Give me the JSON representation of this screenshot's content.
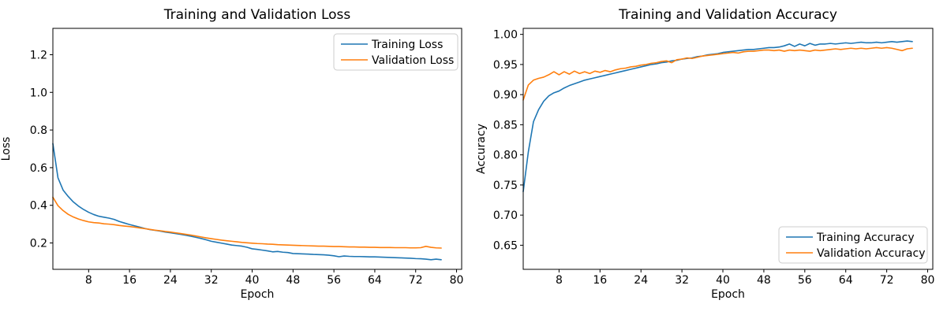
{
  "figure": {
    "background": "#ffffff"
  },
  "chart_data": [
    {
      "type": "line",
      "title": "Training and Validation Loss",
      "xlabel": "Epoch",
      "ylabel": "Loss",
      "xlim": [
        1,
        81
      ],
      "ylim": [
        0.06,
        1.34
      ],
      "grid": false,
      "legend_loc": "upper right",
      "x_ticks": [
        8,
        16,
        24,
        32,
        40,
        48,
        56,
        64,
        72,
        80
      ],
      "y_ticks": [
        0.2,
        0.4,
        0.6,
        0.8,
        1.0,
        1.2
      ],
      "y_tick_labels": [
        "0.2",
        "0.4",
        "0.6",
        "0.8",
        "1.0",
        "1.2"
      ],
      "x_start": 1,
      "series": [
        {
          "name": "Training Loss",
          "color": "#1f77b4",
          "values": [
            0.728,
            0.546,
            0.481,
            0.447,
            0.418,
            0.396,
            0.378,
            0.363,
            0.351,
            0.342,
            0.337,
            0.332,
            0.325,
            0.314,
            0.306,
            0.298,
            0.291,
            0.284,
            0.277,
            0.271,
            0.267,
            0.263,
            0.258,
            0.254,
            0.25,
            0.246,
            0.241,
            0.236,
            0.23,
            0.224,
            0.217,
            0.209,
            0.204,
            0.199,
            0.194,
            0.189,
            0.186,
            0.183,
            0.177,
            0.169,
            0.166,
            0.162,
            0.158,
            0.153,
            0.155,
            0.151,
            0.149,
            0.144,
            0.143,
            0.142,
            0.141,
            0.139,
            0.138,
            0.137,
            0.135,
            0.132,
            0.127,
            0.131,
            0.129,
            0.128,
            0.128,
            0.127,
            0.126,
            0.126,
            0.125,
            0.124,
            0.123,
            0.122,
            0.121,
            0.12,
            0.119,
            0.117,
            0.116,
            0.114,
            0.111,
            0.114,
            0.111
          ]
        },
        {
          "name": "Validation Loss",
          "color": "#ff7f0e",
          "values": [
            0.443,
            0.398,
            0.372,
            0.352,
            0.338,
            0.327,
            0.319,
            0.312,
            0.308,
            0.306,
            0.302,
            0.3,
            0.297,
            0.293,
            0.29,
            0.287,
            0.284,
            0.28,
            0.276,
            0.272,
            0.268,
            0.265,
            0.261,
            0.258,
            0.254,
            0.25,
            0.246,
            0.242,
            0.237,
            0.232,
            0.227,
            0.223,
            0.219,
            0.215,
            0.212,
            0.209,
            0.206,
            0.203,
            0.201,
            0.199,
            0.197,
            0.196,
            0.194,
            0.193,
            0.191,
            0.19,
            0.189,
            0.188,
            0.187,
            0.186,
            0.185,
            0.184,
            0.183,
            0.183,
            0.182,
            0.181,
            0.181,
            0.18,
            0.179,
            0.179,
            0.178,
            0.178,
            0.177,
            0.177,
            0.176,
            0.176,
            0.176,
            0.175,
            0.175,
            0.175,
            0.174,
            0.174,
            0.175,
            0.182,
            0.177,
            0.174,
            0.173
          ]
        }
      ]
    },
    {
      "type": "line",
      "title": "Training and Validation Accuracy",
      "xlabel": "Epoch",
      "ylabel": "Accuracy",
      "xlim": [
        1,
        81
      ],
      "ylim": [
        0.61,
        1.01
      ],
      "grid": false,
      "legend_loc": "lower right",
      "x_ticks": [
        8,
        16,
        24,
        32,
        40,
        48,
        56,
        64,
        72,
        80
      ],
      "y_ticks": [
        0.65,
        0.7,
        0.75,
        0.8,
        0.85,
        0.9,
        0.95,
        1.0
      ],
      "y_tick_labels": [
        "0.65",
        "0.70",
        "0.75",
        "0.80",
        "0.85",
        "0.90",
        "0.95",
        "1.00"
      ],
      "x_start": 1,
      "series": [
        {
          "name": "Training Accuracy",
          "color": "#1f77b4",
          "values": [
            0.739,
            0.805,
            0.855,
            0.875,
            0.889,
            0.898,
            0.903,
            0.906,
            0.911,
            0.915,
            0.918,
            0.921,
            0.924,
            0.926,
            0.928,
            0.93,
            0.932,
            0.934,
            0.936,
            0.938,
            0.94,
            0.942,
            0.944,
            0.946,
            0.948,
            0.95,
            0.951,
            0.953,
            0.954,
            0.956,
            0.957,
            0.959,
            0.96,
            0.961,
            0.963,
            0.964,
            0.966,
            0.967,
            0.968,
            0.97,
            0.971,
            0.972,
            0.973,
            0.974,
            0.975,
            0.975,
            0.976,
            0.977,
            0.978,
            0.978,
            0.979,
            0.981,
            0.984,
            0.98,
            0.984,
            0.981,
            0.985,
            0.982,
            0.984,
            0.984,
            0.985,
            0.984,
            0.985,
            0.986,
            0.985,
            0.986,
            0.987,
            0.986,
            0.986,
            0.987,
            0.986,
            0.987,
            0.988,
            0.987,
            0.988,
            0.989,
            0.988
          ]
        },
        {
          "name": "Validation Accuracy",
          "color": "#ff7f0e",
          "values": [
            0.891,
            0.916,
            0.924,
            0.927,
            0.929,
            0.933,
            0.938,
            0.933,
            0.938,
            0.934,
            0.939,
            0.935,
            0.938,
            0.935,
            0.939,
            0.937,
            0.94,
            0.938,
            0.941,
            0.943,
            0.944,
            0.946,
            0.947,
            0.949,
            0.95,
            0.952,
            0.953,
            0.955,
            0.956,
            0.953,
            0.958,
            0.959,
            0.961,
            0.96,
            0.962,
            0.964,
            0.965,
            0.966,
            0.967,
            0.968,
            0.969,
            0.97,
            0.969,
            0.971,
            0.972,
            0.972,
            0.973,
            0.974,
            0.974,
            0.973,
            0.974,
            0.972,
            0.974,
            0.973,
            0.974,
            0.973,
            0.972,
            0.974,
            0.973,
            0.974,
            0.975,
            0.976,
            0.975,
            0.976,
            0.977,
            0.976,
            0.977,
            0.976,
            0.977,
            0.978,
            0.977,
            0.978,
            0.977,
            0.975,
            0.973,
            0.976,
            0.977
          ]
        }
      ]
    }
  ],
  "style": {
    "line_color_blue": "#1f77b4",
    "line_color_orange": "#ff7f0e",
    "spine_color": "#000000",
    "legend_border_color": "#cccccc",
    "legend_background": "#ffffff"
  }
}
